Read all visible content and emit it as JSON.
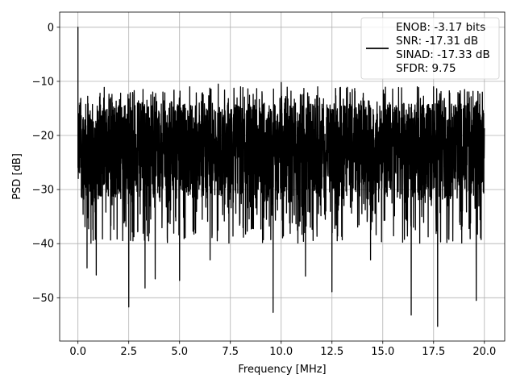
{
  "chart_data": {
    "type": "line",
    "title": "",
    "xlabel": "Frequency [MHz]",
    "ylabel": "PSD [dB]",
    "xlim": [
      -0.9,
      21.0
    ],
    "ylim": [
      -58.0,
      2.8
    ],
    "xticks": [
      0.0,
      2.5,
      5.0,
      7.5,
      10.0,
      12.5,
      15.0,
      17.5,
      20.0
    ],
    "xtick_labels": [
      "0.0",
      "2.5",
      "5.0",
      "7.5",
      "10.0",
      "12.5",
      "15.0",
      "17.5",
      "20.0"
    ],
    "yticks": [
      0,
      -10,
      -20,
      -30,
      -40,
      -50
    ],
    "ytick_labels": [
      "0",
      "−10",
      "−20",
      "−30",
      "−40",
      "−50"
    ],
    "grid": true,
    "legend_position": "top-right",
    "line_color": "#000000",
    "series": [
      {
        "name": "ENOB: -3.17 bits\nSNR: -17.31 dB\nSINAD: -17.33 dB\nSFDR: 9.75",
        "style": "noise spectrum, approximately -23 dB mean with about ±9 dB excursions between 0 and 20 MHz",
        "x_range": [
          0.0,
          20.0
        ],
        "noise_floor_mean_db": -23,
        "noise_band_db": [
          -14,
          -32
        ],
        "peak": {
          "x": 0.0,
          "y": 0.0
        },
        "upper_spikes": [
          {
            "x": 0.1,
            "y": -14
          },
          {
            "x": 3.2,
            "y": -11.5
          },
          {
            "x": 5.5,
            "y": -11
          },
          {
            "x": 6.9,
            "y": -10.5
          },
          {
            "x": 8.0,
            "y": -11
          },
          {
            "x": 10.0,
            "y": -10.2
          },
          {
            "x": 11.8,
            "y": -11
          },
          {
            "x": 13.5,
            "y": -11.5
          },
          {
            "x": 16.7,
            "y": -11
          },
          {
            "x": 17.5,
            "y": -11
          },
          {
            "x": 19.9,
            "y": -12
          }
        ],
        "lower_spikes": [
          {
            "x": 0.45,
            "y": -44.5
          },
          {
            "x": 0.9,
            "y": -45.8
          },
          {
            "x": 2.5,
            "y": -51.7
          },
          {
            "x": 3.3,
            "y": -48.2
          },
          {
            "x": 3.8,
            "y": -46.5
          },
          {
            "x": 5.0,
            "y": -46.8
          },
          {
            "x": 6.5,
            "y": -43
          },
          {
            "x": 9.6,
            "y": -52.7
          },
          {
            "x": 11.2,
            "y": -46
          },
          {
            "x": 12.5,
            "y": -48.9
          },
          {
            "x": 14.4,
            "y": -43
          },
          {
            "x": 16.4,
            "y": -53.2
          },
          {
            "x": 17.7,
            "y": -55.3
          },
          {
            "x": 19.6,
            "y": -50.5
          }
        ]
      }
    ]
  }
}
